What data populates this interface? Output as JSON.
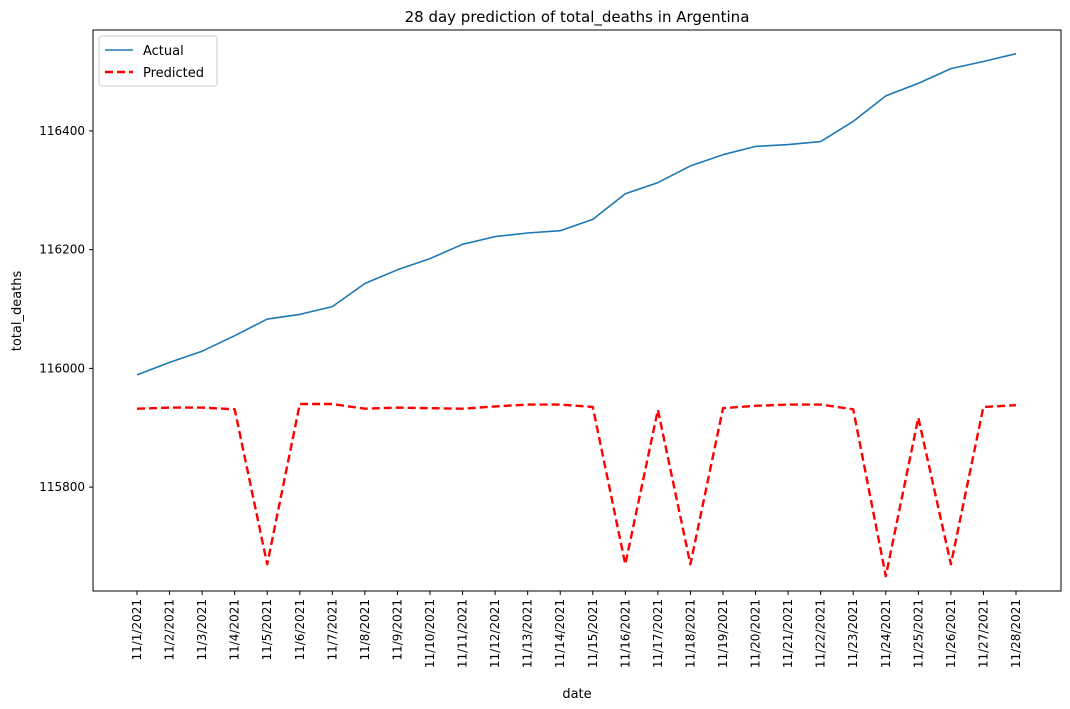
{
  "chart_data": {
    "type": "line",
    "title": "28 day prediction of total_deaths in Argentina",
    "xlabel": "date",
    "ylabel": "total_deaths",
    "x": [
      "11/1/2021",
      "11/2/2021",
      "11/3/2021",
      "11/4/2021",
      "11/5/2021",
      "11/6/2021",
      "11/7/2021",
      "11/8/2021",
      "11/9/2021",
      "11/10/2021",
      "11/11/2021",
      "11/12/2021",
      "11/13/2021",
      "11/14/2021",
      "11/15/2021",
      "11/16/2021",
      "11/17/2021",
      "11/18/2021",
      "11/19/2021",
      "11/20/2021",
      "11/21/2021",
      "11/22/2021",
      "11/23/2021",
      "11/24/2021",
      "11/25/2021",
      "11/26/2021",
      "11/27/2021",
      "11/28/2021"
    ],
    "ylim": [
      115625,
      116570
    ],
    "yticks": [
      115800,
      116000,
      116200,
      116400
    ],
    "legend_position": "top-left",
    "series": [
      {
        "name": "Actual",
        "color": "#1f77b4",
        "style": "solid",
        "values": [
          115989,
          116010,
          116029,
          116055,
          116083,
          116091,
          116104,
          116143,
          116166,
          116185,
          116209,
          116222,
          116228,
          116232,
          116251,
          116294,
          116313,
          116341,
          116360,
          116374,
          116377,
          116382,
          116416,
          116459,
          116480,
          116505,
          116517,
          116530
        ]
      },
      {
        "name": "Predicted",
        "color": "#ff0000",
        "style": "dashed",
        "values": [
          115932,
          115934,
          115934,
          115931,
          115670,
          115940,
          115940,
          115932,
          115934,
          115933,
          115932,
          115936,
          115939,
          115939,
          115935,
          115670,
          115930,
          115670,
          115933,
          115937,
          115939,
          115939,
          115931,
          115650,
          115917,
          115670,
          115935,
          115938
        ]
      }
    ]
  }
}
